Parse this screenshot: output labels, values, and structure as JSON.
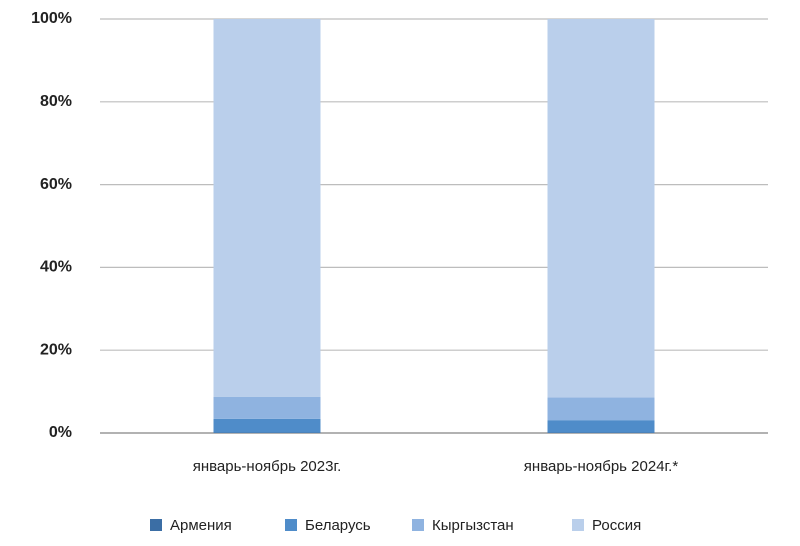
{
  "chart_data": {
    "type": "stacked_bar",
    "categories": [
      "январь-ноябрь 2023г.",
      "январь-ноябрь 2024г.*"
    ],
    "series": [
      {
        "name": "Армения",
        "color": "#3b6ea5",
        "values": [
          0.1,
          0.1
        ]
      },
      {
        "name": "Беларусь",
        "color": "#4f8cc9",
        "values": [
          3.3,
          3.0
        ]
      },
      {
        "name": "Кыргызстан",
        "color": "#8fb3e0",
        "values": [
          5.3,
          5.5
        ]
      },
      {
        "name": "Россия",
        "color": "#bacfeb",
        "values": [
          91.3,
          91.4
        ]
      }
    ],
    "ylim": [
      0,
      100
    ],
    "yticks": [
      {
        "value": 0,
        "label": "0%"
      },
      {
        "value": 20,
        "label": "20%"
      },
      {
        "value": 40,
        "label": "40%"
      },
      {
        "value": 60,
        "label": "60%"
      },
      {
        "value": 80,
        "label": "80%"
      },
      {
        "value": 100,
        "label": "100%"
      }
    ],
    "grid": true
  }
}
